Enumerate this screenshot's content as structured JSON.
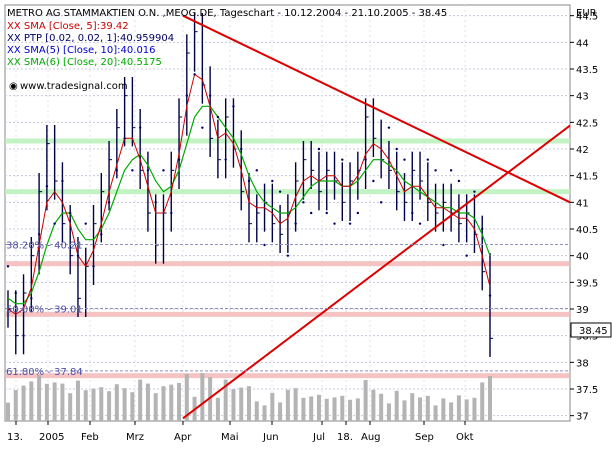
{
  "chart_data": {
    "type": "line",
    "title": "METRO AG STAMMAKTIEN O.N. ,MEOG.DE, Tageschart - 10.12.2004 - 21.10.2005 - 38.45",
    "currency": "EUR",
    "last_price": "38.45",
    "x_tick_labels": [
      "13.",
      "2005",
      "Feb",
      "Mrz",
      "Apr",
      "Mai",
      "Jun",
      "Jul",
      "18.",
      "Aug",
      "Sep",
      "Okt"
    ],
    "y_range": [
      36.9,
      44.7
    ],
    "y_tick_labels": [
      "37",
      "37.5",
      "38",
      "38.5",
      "39",
      "39.5",
      "40",
      "40.5",
      "41",
      "41.5",
      "42",
      "42.5",
      "43",
      "43.5",
      "44",
      "44.5"
    ],
    "legend": [
      {
        "text": "XX SMA [Close, 5]:39.42",
        "color": "#cc0000"
      },
      {
        "text": "XX PTP [0.02, 0.02, 1]:40.959904",
        "color": "#000066"
      },
      {
        "text": "XX SMA(5) [Close, 10]:40.016",
        "color": "#0000cc"
      },
      {
        "text": "XX SMA(6) [Close, 20]:40.5175",
        "color": "#00aa00"
      }
    ],
    "source_label": "www.tradesignal.com",
    "fib_levels": [
      {
        "label": "38.20% - 40.21",
        "value": 40.21
      },
      {
        "label": "50.00% - 39.01",
        "value": 39.01
      },
      {
        "label": "61.80% - 37.84",
        "value": 37.84
      }
    ],
    "support_levels": [
      42.15,
      41.2,
      39.85,
      38.9,
      37.75
    ],
    "trendlines": [
      {
        "name": "upper",
        "from": [
          "Apr",
          44.5
        ],
        "to": [
          "Okt",
          41.95
        ]
      },
      {
        "name": "lower",
        "from": [
          "Apr",
          36.95
        ],
        "to": [
          "Okt",
          40.95
        ]
      }
    ],
    "price": [
      39.0,
      38.5,
      39.3,
      40.0,
      41.2,
      42.1,
      41.4,
      40.6,
      40.0,
      39.2,
      39.8,
      40.6,
      41.2,
      41.8,
      42.4,
      43.0,
      42.4,
      41.6,
      40.8,
      40.2,
      40.8,
      41.6,
      42.6,
      43.8,
      44.2,
      43.2,
      42.2,
      41.8,
      42.6,
      42.0,
      41.2,
      40.6,
      40.8,
      41.0,
      40.6,
      40.4,
      40.8,
      41.4,
      41.8,
      41.6,
      41.2,
      41.6,
      41.4,
      41.0,
      41.4,
      41.6,
      42.6,
      42.2,
      41.8,
      41.6,
      41.2,
      41.0,
      41.6,
      41.4,
      41.0,
      40.8,
      41.0,
      40.8,
      40.6,
      40.8,
      40.4,
      39.7,
      38.45
    ],
    "sma5": [
      39.0,
      38.9,
      39.0,
      39.4,
      40.2,
      41.0,
      41.2,
      41.0,
      40.6,
      40.0,
      39.8,
      40.1,
      40.6,
      41.2,
      41.7,
      42.2,
      42.2,
      41.8,
      41.3,
      40.8,
      40.8,
      41.2,
      41.9,
      42.8,
      43.4,
      43.3,
      42.8,
      42.2,
      42.3,
      42.1,
      41.6,
      41.0,
      40.9,
      40.9,
      40.8,
      40.6,
      40.7,
      41.1,
      41.4,
      41.5,
      41.4,
      41.5,
      41.5,
      41.3,
      41.3,
      41.5,
      41.9,
      42.1,
      42.0,
      41.8,
      41.5,
      41.2,
      41.3,
      41.3,
      41.1,
      40.9,
      40.9,
      40.8,
      40.7,
      40.7,
      40.5,
      40.0,
      39.42
    ],
    "sma_slow": [
      39.2,
      39.1,
      39.1,
      39.3,
      39.7,
      40.2,
      40.6,
      40.8,
      40.8,
      40.5,
      40.3,
      40.3,
      40.5,
      40.8,
      41.2,
      41.6,
      41.8,
      41.9,
      41.7,
      41.4,
      41.2,
      41.3,
      41.6,
      42.1,
      42.6,
      42.8,
      42.8,
      42.6,
      42.4,
      42.2,
      41.9,
      41.5,
      41.2,
      41.0,
      40.9,
      40.8,
      40.8,
      40.9,
      41.1,
      41.3,
      41.4,
      41.4,
      41.4,
      41.3,
      41.3,
      41.4,
      41.6,
      41.8,
      41.8,
      41.7,
      41.6,
      41.4,
      41.3,
      41.2,
      41.1,
      41.0,
      40.9,
      40.9,
      40.8,
      40.8,
      40.7,
      40.4,
      40.0
    ]
  }
}
